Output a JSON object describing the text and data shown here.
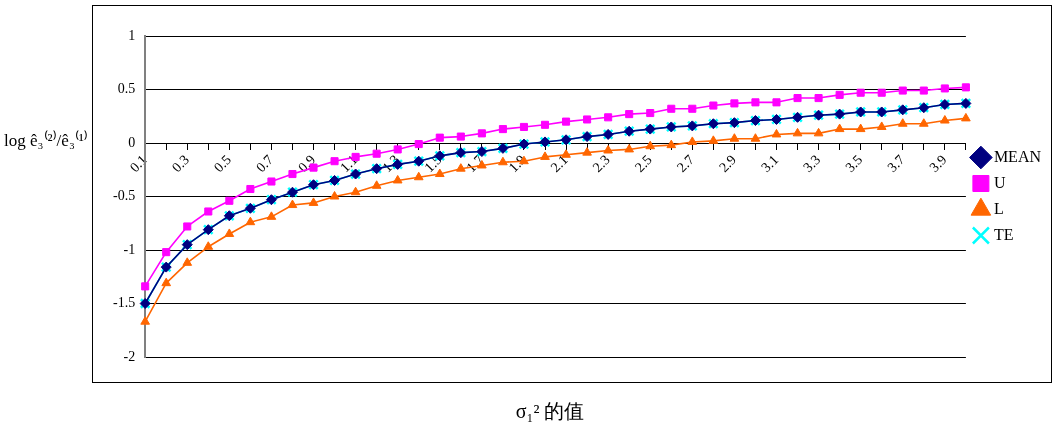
{
  "chart_data": {
    "type": "line",
    "xlabel": "σ₁² 的值",
    "ylabel": "log ê₃⁽²⁾/ê₃⁽¹⁾",
    "categories": [
      "0.1",
      null,
      "0.3",
      null,
      "0.5",
      null,
      "0.7",
      null,
      "0.9",
      null,
      "1.1",
      null,
      "1.3",
      null,
      "1.5",
      null,
      "1.7",
      null,
      "1.9",
      null,
      "2.1",
      null,
      "2.3",
      null,
      "2.5",
      null,
      "2.7",
      null,
      "2.9",
      null,
      "3.1",
      null,
      "3.3",
      null,
      "3.5",
      null,
      "3.7",
      null,
      "3.9",
      null
    ],
    "ylim": [
      -2,
      1
    ],
    "yticks": [
      -2,
      -1.5,
      -1,
      -0.5,
      0,
      0.5,
      1
    ],
    "grid": "y",
    "legend": "right",
    "series": [
      {
        "name": "MEAN",
        "color": "#000080",
        "marker": "diamond",
        "values": [
          -1.5,
          -1.16,
          -0.95,
          -0.81,
          -0.68,
          -0.61,
          -0.53,
          -0.46,
          -0.39,
          -0.35,
          -0.29,
          -0.24,
          -0.2,
          -0.17,
          -0.12,
          -0.09,
          -0.08,
          -0.05,
          -0.01,
          0.01,
          0.03,
          0.06,
          0.08,
          0.11,
          0.13,
          0.15,
          0.16,
          0.18,
          0.19,
          0.21,
          0.22,
          0.24,
          0.26,
          0.27,
          0.29,
          0.29,
          0.31,
          0.33,
          0.36,
          0.37
        ]
      },
      {
        "name": "U",
        "color": "#ff00ff",
        "marker": "square",
        "values": [
          -1.34,
          -1.02,
          -0.78,
          -0.64,
          -0.54,
          -0.43,
          -0.36,
          -0.29,
          -0.23,
          -0.17,
          -0.13,
          -0.1,
          -0.06,
          -0.01,
          0.05,
          0.06,
          0.09,
          0.13,
          0.15,
          0.17,
          0.2,
          0.22,
          0.24,
          0.27,
          0.28,
          0.32,
          0.32,
          0.35,
          0.37,
          0.38,
          0.38,
          0.42,
          0.42,
          0.45,
          0.47,
          0.47,
          0.49,
          0.49,
          0.51,
          0.52
        ]
      },
      {
        "name": "L",
        "color": "#ff6600",
        "marker": "triangle",
        "values": [
          -1.67,
          -1.31,
          -1.12,
          -0.97,
          -0.85,
          -0.74,
          -0.69,
          -0.58,
          -0.56,
          -0.5,
          -0.46,
          -0.4,
          -0.35,
          -0.32,
          -0.29,
          -0.24,
          -0.21,
          -0.18,
          -0.17,
          -0.13,
          -0.11,
          -0.09,
          -0.07,
          -0.06,
          -0.03,
          -0.02,
          0.01,
          0.02,
          0.04,
          0.04,
          0.08,
          0.09,
          0.09,
          0.13,
          0.13,
          0.15,
          0.18,
          0.18,
          0.21,
          0.23
        ]
      },
      {
        "name": "TE",
        "color": "#00ffff",
        "marker": "cross",
        "values": [
          -1.5,
          -1.16,
          -0.95,
          -0.81,
          -0.68,
          -0.61,
          -0.53,
          -0.46,
          -0.39,
          -0.35,
          -0.29,
          -0.24,
          -0.2,
          -0.17,
          -0.12,
          -0.09,
          -0.08,
          -0.05,
          -0.01,
          0.01,
          0.03,
          0.06,
          0.08,
          0.11,
          0.13,
          0.15,
          0.16,
          0.18,
          0.19,
          0.21,
          0.22,
          0.24,
          0.26,
          0.27,
          0.29,
          0.29,
          0.31,
          0.33,
          0.36,
          0.37
        ]
      }
    ]
  }
}
